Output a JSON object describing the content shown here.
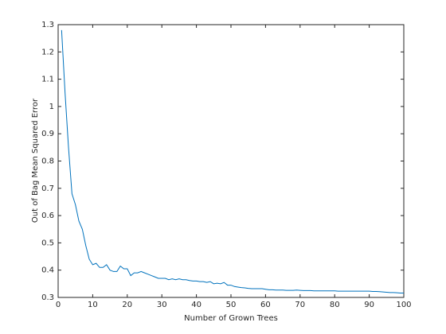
{
  "chart_data": {
    "type": "line",
    "xlabel": "Number of Grown Trees",
    "ylabel": "Out of Bag Mean Squared Error",
    "xlim": [
      0,
      100
    ],
    "ylim": [
      0.3,
      1.3
    ],
    "xticks": [
      0,
      10,
      20,
      30,
      40,
      50,
      60,
      70,
      80,
      90,
      100
    ],
    "yticks": [
      0.3,
      0.4,
      0.5,
      0.6,
      0.7,
      0.8,
      0.9,
      1,
      1.1,
      1.2,
      1.3
    ],
    "grid": false,
    "x": [
      1,
      2,
      3,
      4,
      5,
      6,
      7,
      8,
      9,
      10,
      11,
      12,
      13,
      14,
      15,
      16,
      17,
      18,
      19,
      20,
      21,
      22,
      23,
      24,
      25,
      26,
      27,
      28,
      29,
      30,
      31,
      32,
      33,
      34,
      35,
      36,
      37,
      38,
      39,
      40,
      41,
      42,
      43,
      44,
      45,
      46,
      47,
      48,
      49,
      50,
      51,
      52,
      53,
      54,
      55,
      56,
      57,
      58,
      59,
      60,
      61,
      62,
      63,
      64,
      65,
      66,
      67,
      68,
      69,
      70,
      71,
      72,
      73,
      74,
      75,
      76,
      77,
      78,
      79,
      80,
      81,
      82,
      83,
      84,
      85,
      86,
      87,
      88,
      89,
      90,
      91,
      92,
      93,
      94,
      95,
      96,
      97,
      98,
      99,
      100
    ],
    "series": [
      {
        "color": "#0072bd",
        "values": [
          1.28,
          1.05,
          0.85,
          0.68,
          0.64,
          0.58,
          0.55,
          0.49,
          0.44,
          0.42,
          0.425,
          0.41,
          0.41,
          0.42,
          0.4,
          0.395,
          0.395,
          0.415,
          0.405,
          0.405,
          0.38,
          0.39,
          0.39,
          0.395,
          0.39,
          0.385,
          0.38,
          0.375,
          0.37,
          0.37,
          0.37,
          0.365,
          0.368,
          0.365,
          0.368,
          0.365,
          0.365,
          0.362,
          0.36,
          0.36,
          0.358,
          0.358,
          0.355,
          0.358,
          0.35,
          0.352,
          0.35,
          0.355,
          0.345,
          0.345,
          0.34,
          0.338,
          0.336,
          0.335,
          0.333,
          0.332,
          0.332,
          0.332,
          0.332,
          0.33,
          0.328,
          0.328,
          0.327,
          0.327,
          0.327,
          0.326,
          0.326,
          0.326,
          0.327,
          0.326,
          0.325,
          0.325,
          0.325,
          0.324,
          0.324,
          0.324,
          0.324,
          0.324,
          0.324,
          0.324,
          0.323,
          0.323,
          0.323,
          0.323,
          0.323,
          0.323,
          0.323,
          0.323,
          0.323,
          0.323,
          0.322,
          0.322,
          0.321,
          0.32,
          0.319,
          0.318,
          0.318,
          0.317,
          0.316,
          0.316
        ]
      }
    ]
  }
}
